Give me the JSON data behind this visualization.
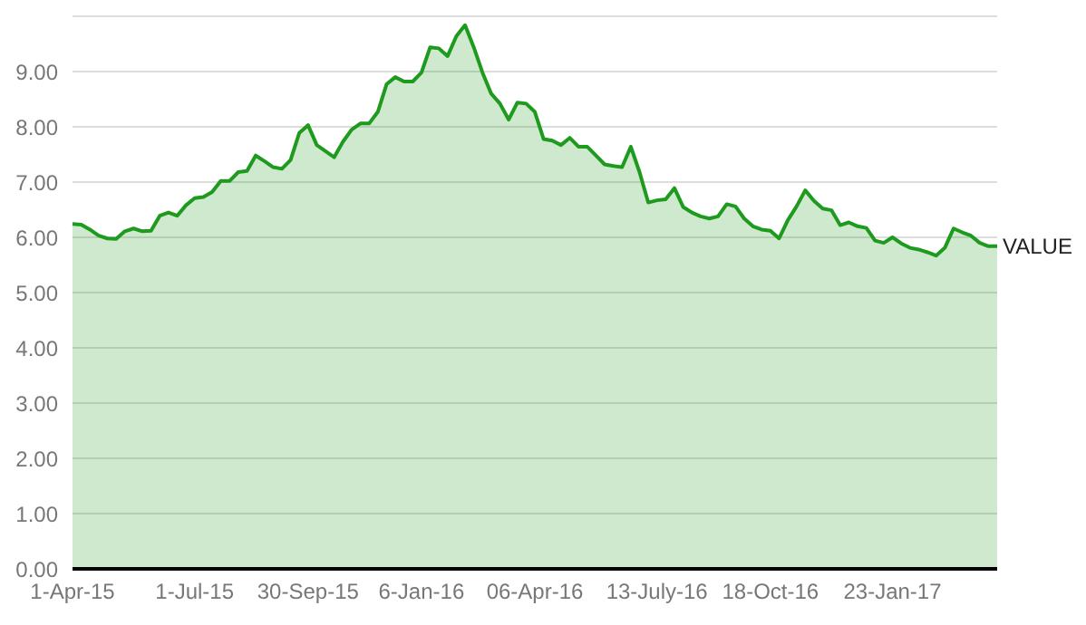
{
  "chart_data": {
    "type": "area",
    "categories": [
      "1-Apr-15",
      null,
      null,
      null,
      null,
      null,
      null,
      null,
      null,
      null,
      null,
      null,
      null,
      null,
      "1-Jul-15",
      null,
      null,
      null,
      null,
      null,
      null,
      null,
      null,
      null,
      null,
      null,
      null,
      "30-Sep-15",
      null,
      null,
      null,
      null,
      null,
      null,
      null,
      null,
      null,
      null,
      null,
      null,
      "6-Jan-16",
      null,
      null,
      null,
      null,
      null,
      null,
      null,
      null,
      null,
      null,
      null,
      null,
      "06-Apr-16",
      null,
      null,
      null,
      null,
      null,
      null,
      null,
      null,
      null,
      null,
      null,
      null,
      null,
      "13-July-16",
      null,
      null,
      null,
      null,
      null,
      null,
      null,
      null,
      null,
      null,
      null,
      null,
      "18-Oct-16",
      null,
      null,
      null,
      null,
      null,
      null,
      null,
      null,
      null,
      null,
      null,
      null,
      null,
      "23-Jan-17",
      null,
      null,
      null,
      null,
      null,
      null,
      null,
      null,
      null,
      null,
      null,
      null
    ],
    "series": [
      {
        "name": "VALUE",
        "color": "#1e9b1e",
        "values": [
          6.24,
          6.23,
          6.14,
          6.03,
          5.98,
          5.97,
          6.11,
          6.16,
          6.11,
          6.12,
          6.39,
          6.45,
          6.39,
          6.58,
          6.71,
          6.73,
          6.82,
          7.02,
          7.02,
          7.18,
          7.2,
          7.48,
          7.38,
          7.27,
          7.24,
          7.4,
          7.89,
          8.03,
          7.67,
          7.56,
          7.45,
          7.73,
          7.95,
          8.06,
          8.06,
          8.27,
          8.77,
          8.9,
          8.82,
          8.82,
          8.98,
          9.44,
          9.42,
          9.28,
          9.64,
          9.84,
          9.44,
          8.98,
          8.6,
          8.42,
          8.13,
          8.44,
          8.42,
          8.27,
          7.78,
          7.75,
          7.67,
          7.8,
          7.64,
          7.64,
          7.48,
          7.32,
          7.29,
          7.27,
          7.64,
          7.18,
          6.63,
          6.67,
          6.69,
          6.89,
          6.55,
          6.45,
          6.38,
          6.34,
          6.38,
          6.6,
          6.56,
          6.34,
          6.2,
          6.14,
          6.12,
          5.98,
          6.31,
          6.56,
          6.85,
          6.66,
          6.52,
          6.49,
          6.22,
          6.27,
          6.2,
          6.17,
          5.94,
          5.9,
          6.0,
          5.89,
          5.81,
          5.78,
          5.73,
          5.67,
          5.81,
          6.16,
          6.09,
          6.03,
          5.9,
          5.84,
          5.84
        ]
      }
    ],
    "ylim": [
      0,
      10
    ],
    "yticks": [
      {
        "value": 0,
        "label": "0.00"
      },
      {
        "value": 1,
        "label": "1.00"
      },
      {
        "value": 2,
        "label": "2.00"
      },
      {
        "value": 3,
        "label": "3.00"
      },
      {
        "value": 4,
        "label": "4.00"
      },
      {
        "value": 5,
        "label": "5.00"
      },
      {
        "value": 6,
        "label": "6.00"
      },
      {
        "value": 7,
        "label": "7.00"
      },
      {
        "value": 8,
        "label": "8.00"
      },
      {
        "value": 9,
        "label": "9.00"
      }
    ],
    "grid": "y",
    "legend": false,
    "marker": "none",
    "line_style": "solid"
  }
}
